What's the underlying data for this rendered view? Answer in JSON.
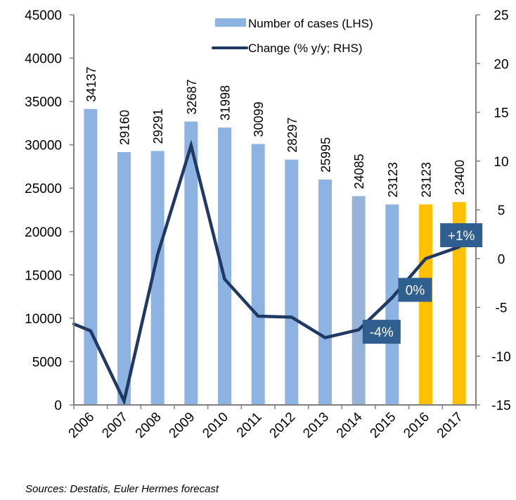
{
  "chart_data": {
    "type": "bar",
    "title": "",
    "categories": [
      "2006",
      "2007",
      "2008",
      "2009",
      "2010",
      "2011",
      "2012",
      "2013",
      "2014",
      "2015",
      "2016",
      "2017"
    ],
    "series": [
      {
        "name": "Number of cases (LHS)",
        "type": "bar",
        "axis": "left",
        "values": [
          34137,
          29160,
          29291,
          32687,
          31998,
          30099,
          28297,
          25995,
          24085,
          23123,
          23123,
          23400
        ],
        "data_labels": [
          "34137",
          "29160",
          "29291",
          "32687",
          "31998",
          "30099",
          "28297",
          "25995",
          "24085",
          "23123",
          "23123",
          "23400"
        ],
        "colors": [
          "#8db3e2",
          "#8db3e2",
          "#8db3e2",
          "#8db3e2",
          "#8db3e2",
          "#8db3e2",
          "#8db3e2",
          "#8db3e2",
          "#95b3d7",
          "#8db3e2",
          "#ffc000",
          "#ffc000"
        ],
        "forecast_categories": [
          "2016",
          "2017"
        ]
      },
      {
        "name": "Change (% y/y; RHS)",
        "type": "line",
        "axis": "right",
        "color": "#1f3864",
        "start_value": -6.7,
        "values": [
          -7.4,
          -14.6,
          0.4,
          11.6,
          -2.1,
          -5.9,
          -6.0,
          -8.1,
          -7.3,
          -4.0,
          0.0,
          1.2
        ]
      }
    ],
    "left_axis": {
      "ylim": [
        0,
        45000
      ],
      "ticks": [
        "0",
        "5000",
        "10000",
        "15000",
        "20000",
        "25000",
        "30000",
        "35000",
        "40000",
        "45000"
      ],
      "tick_values": [
        0,
        5000,
        10000,
        15000,
        20000,
        25000,
        30000,
        35000,
        40000,
        45000
      ]
    },
    "right_axis": {
      "ylim": [
        -15,
        25
      ],
      "ticks": [
        "-15",
        "-10",
        "-5",
        "0",
        "5",
        "10",
        "15",
        "20",
        "25"
      ],
      "tick_values": [
        -15,
        -10,
        -5,
        0,
        5,
        10,
        15,
        20,
        25
      ]
    },
    "annotations": [
      {
        "text": "-4%",
        "category": "2015",
        "value": -7.5,
        "bg": "#2e5f8e"
      },
      {
        "text": "0%",
        "category": "2016",
        "value": -3.2,
        "bg": "#2e5f8e"
      },
      {
        "text": "+1%",
        "category": "2017",
        "value": 2.4,
        "bg": "#2e5f8e"
      }
    ],
    "legend": {
      "position": "top-center",
      "entries": [
        "Number of cases (LHS)",
        "Change (% y/y; RHS)"
      ]
    },
    "grid": false,
    "xlabel": "",
    "ylabel": ""
  },
  "source": "Sources: Destatis, Euler Hermes forecast"
}
